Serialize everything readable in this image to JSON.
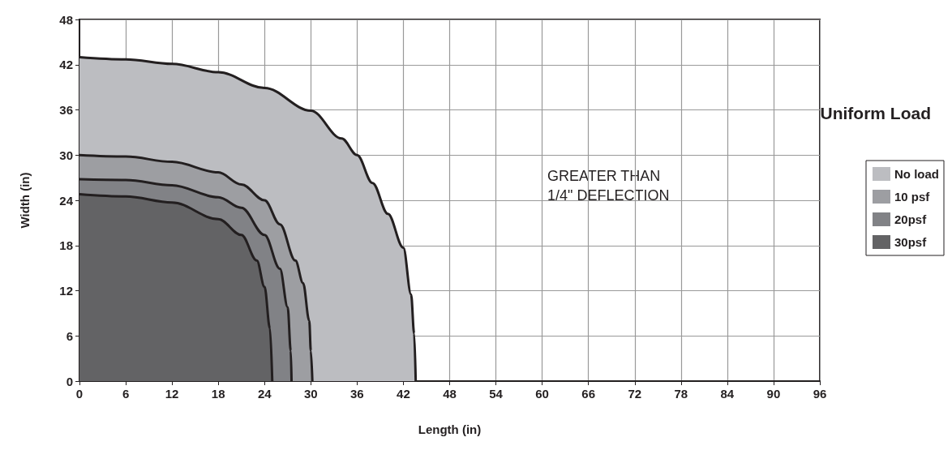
{
  "chart_data": {
    "type": "area",
    "xlabel": "Length (in)",
    "ylabel": "Width (in)",
    "legend_title": "Uniform Load",
    "legend": "right",
    "grid": true,
    "xlim": [
      0,
      96
    ],
    "xticks": [
      0,
      6,
      12,
      18,
      24,
      30,
      36,
      42,
      48,
      54,
      60,
      66,
      72,
      78,
      84,
      90,
      96
    ],
    "ylim": [
      0,
      48
    ],
    "yticks": [
      0,
      6,
      12,
      18,
      24,
      30,
      36,
      42,
      48
    ],
    "annotations": [
      "GREATER THAN\n1/4\" DEFLECTION"
    ],
    "series": [
      {
        "name": "No load",
        "color": "#bcbdc1",
        "x": [
          0,
          6,
          12,
          18,
          24,
          30,
          34,
          36,
          38,
          40,
          42,
          43,
          43.4,
          43.6
        ],
        "values": [
          43,
          42.7,
          42.1,
          41,
          38.9,
          35.9,
          32.2,
          30,
          26.3,
          22.2,
          17.7,
          11.5,
          6.3,
          0
        ]
      },
      {
        "name": "10 psf",
        "color": "#9d9ea2",
        "x": [
          0,
          6,
          12,
          18,
          21,
          24,
          26,
          28,
          29,
          29.8,
          30,
          30.2
        ],
        "values": [
          30,
          29.8,
          29.1,
          27.7,
          26.1,
          24,
          20.8,
          16,
          13,
          8,
          4,
          0
        ]
      },
      {
        "name": "20psf",
        "color": "#818286",
        "x": [
          0,
          6,
          12,
          18,
          21,
          24,
          26,
          27,
          27.4,
          27.5
        ],
        "values": [
          26.8,
          26.7,
          26,
          24.4,
          23,
          19.4,
          14.9,
          9.8,
          4,
          0
        ]
      },
      {
        "name": "30psf",
        "color": "#636365",
        "x": [
          0,
          6,
          12,
          18,
          21,
          23,
          24,
          24.7,
          25
        ],
        "values": [
          24.8,
          24.5,
          23.7,
          21.5,
          19.4,
          16,
          12.5,
          7,
          0
        ]
      }
    ]
  }
}
